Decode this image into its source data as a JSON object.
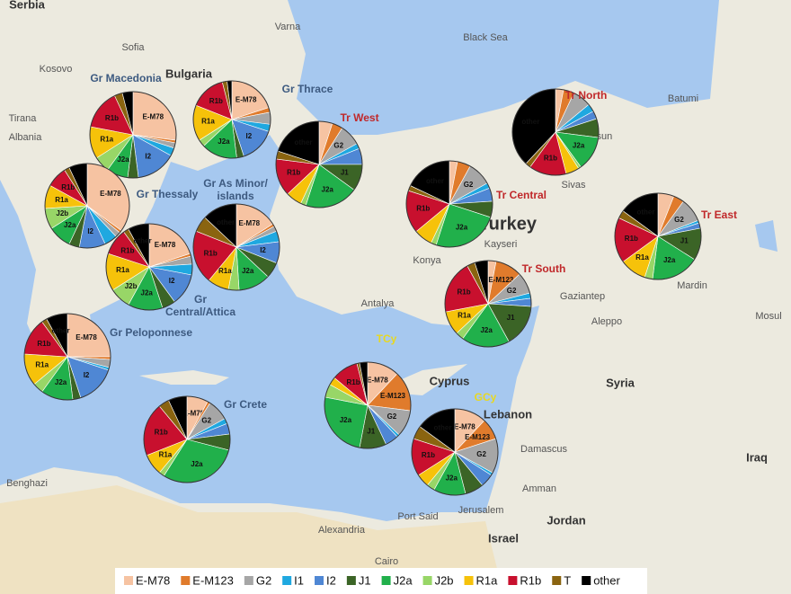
{
  "legend": [
    {
      "name": "E-M78",
      "color": "#f6c3a2"
    },
    {
      "name": "E-M123",
      "color": "#e07b2c"
    },
    {
      "name": "G2",
      "color": "#a6a6a6"
    },
    {
      "name": "I1",
      "color": "#1fa8e0"
    },
    {
      "name": "I2",
      "color": "#4f87d4"
    },
    {
      "name": "J1",
      "color": "#3b6426"
    },
    {
      "name": "J2a",
      "color": "#21b04b"
    },
    {
      "name": "J2b",
      "color": "#98d667"
    },
    {
      "name": "R1a",
      "color": "#f6c20a"
    },
    {
      "name": "R1b",
      "color": "#c8102e"
    },
    {
      "name": "T",
      "color": "#8a6410"
    },
    {
      "name": "other",
      "color": "#000000"
    }
  ],
  "pies": [
    {
      "label": [
        "Gr Macedonia"
      ],
      "group": "gr",
      "values": [
        27,
        1,
        2,
        3,
        15,
        4,
        8,
        6,
        12,
        15,
        3,
        4
      ]
    },
    {
      "label": [
        "Gr Thrace"
      ],
      "group": "gr",
      "values": [
        20,
        2,
        5,
        3,
        15,
        3,
        15,
        3,
        15,
        15,
        2,
        2
      ]
    },
    {
      "label": [
        "Tr West"
      ],
      "group": "tr",
      "values": [
        5,
        4,
        8,
        2,
        6,
        10,
        20,
        2,
        6,
        14,
        3,
        20
      ]
    },
    {
      "label": [
        "Tr North"
      ],
      "group": "tr",
      "values": [
        3,
        4,
        7,
        3,
        3,
        7,
        13,
        1,
        5,
        14,
        2,
        38
      ]
    },
    {
      "label": [
        "Gr Thessaly"
      ],
      "group": "gr",
      "values": [
        35,
        1,
        2,
        5,
        10,
        4,
        9,
        8,
        9,
        8,
        2,
        7
      ]
    },
    {
      "label": [
        "Gr As Minor/",
        "islands"
      ],
      "group": "gr",
      "values": [
        16,
        1,
        2,
        4,
        8,
        6,
        12,
        4,
        8,
        20,
        6,
        13
      ]
    },
    {
      "label": [
        "Tr Central"
      ],
      "group": "tr",
      "values": [
        3,
        5,
        9,
        2,
        5,
        6,
        25,
        2,
        7,
        16,
        2,
        18
      ]
    },
    {
      "label": [
        "Tr East"
      ],
      "group": "tr",
      "values": [
        6,
        4,
        9,
        1,
        2,
        12,
        18,
        3,
        10,
        17,
        3,
        15
      ]
    },
    {
      "label": [
        "Gr",
        "Central/Attica"
      ],
      "group": "gr",
      "values": [
        20,
        1,
        3,
        4,
        12,
        5,
        13,
        8,
        14,
        10,
        2,
        8
      ]
    },
    {
      "label": [
        "Tr South"
      ],
      "group": "tr",
      "values": [
        3,
        10,
        8,
        2,
        3,
        16,
        18,
        3,
        9,
        20,
        3,
        5
      ]
    },
    {
      "label": [
        "Gr Peloponnese"
      ],
      "group": "gr",
      "values": [
        25,
        1,
        3,
        1,
        15,
        3,
        12,
        4,
        12,
        14,
        2,
        8
      ]
    },
    {
      "label": [
        "Gr Crete"
      ],
      "group": "gr",
      "values": [
        8,
        1,
        8,
        2,
        4,
        6,
        30,
        2,
        8,
        20,
        4,
        7
      ]
    },
    {
      "label": [
        "TCy"
      ],
      "group": "cy",
      "values": [
        12,
        15,
        10,
        1,
        5,
        10,
        25,
        5,
        3,
        10,
        1,
        3
      ]
    },
    {
      "label": [
        "GCy"
      ],
      "group": "cy",
      "values": [
        12,
        8,
        13,
        1,
        5,
        7,
        12,
        3,
        5,
        14,
        5,
        15
      ]
    }
  ],
  "places": [
    {
      "name": "Serbia"
    },
    {
      "name": "Bulgaria"
    },
    {
      "name": "Turkey"
    },
    {
      "name": "Syria"
    },
    {
      "name": "Iraq"
    },
    {
      "name": "Jordan"
    },
    {
      "name": "Lebanon"
    },
    {
      "name": "Israel"
    },
    {
      "name": "Cyprus"
    },
    {
      "name": "Albania"
    },
    {
      "name": "Kosovo"
    },
    {
      "name": "Black Sea"
    },
    {
      "name": "Sofia"
    },
    {
      "name": "Varna"
    },
    {
      "name": "Antalya"
    },
    {
      "name": "Konya"
    },
    {
      "name": "Kayseri"
    },
    {
      "name": "Aleppo"
    },
    {
      "name": "Damascus"
    },
    {
      "name": "Amman"
    },
    {
      "name": "Batumi"
    },
    {
      "name": "Sivas"
    },
    {
      "name": "Mardin"
    },
    {
      "name": "Gaziantep"
    },
    {
      "name": "Alexandria"
    },
    {
      "name": "Cairo"
    },
    {
      "name": "Port Said"
    },
    {
      "name": "Benghazi"
    },
    {
      "name": "Jerusalem"
    },
    {
      "name": "Tirana"
    },
    {
      "name": "Giresun"
    },
    {
      "name": "Mosul"
    }
  ]
}
